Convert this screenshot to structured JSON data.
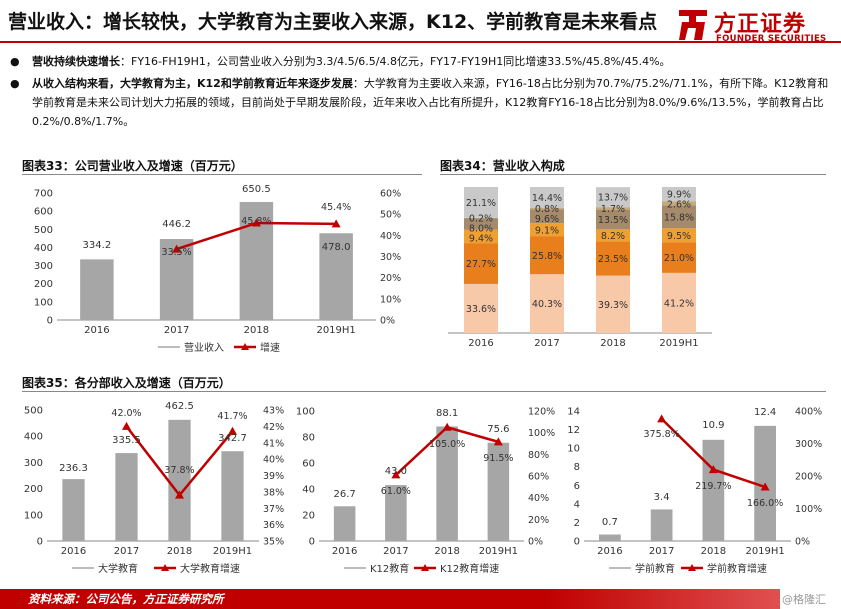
{
  "header": {
    "title": "营业收入：增长较快，大学教育为主要收入来源，K12、学前教育是未来看点",
    "logo_cn": "方正证券",
    "logo_en": "FOUNDER SECURITIES"
  },
  "bullets": [
    {
      "bold": "营收持续快速增长",
      "text": "：FY16-FH19H1，公司营业收入分别为3.3/4.5/6.5/4.8亿元，FY17-FY19H1同比增速33.5%/45.8%/45.4%。"
    },
    {
      "bold": "从收入结构来看，大学教育为主，K12和学前教育近年来逐步发展",
      "text": "：大学教育为主要收入来源，FY16-18占比分别为70.7%/75.2%/71.1%，有所下降。K12教育和学前教育是未来公司计划大力拓展的领域，目前尚处于早期发展阶段，近年来收入占比有所提升，K12教育FY16-18占比分别为8.0%/9.6%/13.5%，学前教育占比0.2%/0.8%/1.7%。"
    }
  ],
  "figures": {
    "fig33_title": "图表33：公司营业收入及增速（百万元）",
    "fig34_title": "图表34：营业收入构成",
    "fig35_title": "图表35：各分部收入及增速（百万元）"
  },
  "footer": {
    "source": "资料来源：公司公告，方正证券研究所",
    "watermark": "@格隆汇"
  },
  "colors": {
    "brand": "#c00000",
    "bar": "#a6a6a6",
    "line": "#c00000",
    "stack": [
      "#f8c9a9",
      "#e97e1c",
      "#f0a030",
      "#a58a6c",
      "#c6a979",
      "#c9c9c9"
    ]
  },
  "chart_data": [
    {
      "id": "fig33",
      "type": "bar",
      "categories": [
        "2016",
        "2017",
        "2018",
        "2019H1"
      ],
      "series": [
        {
          "name": "营业收入",
          "type": "bar",
          "values": [
            334.2,
            446.2,
            650.5,
            478.0
          ],
          "labels": [
            "334.2",
            "446.2",
            "650.5",
            "478.0"
          ]
        },
        {
          "name": "增速",
          "type": "line",
          "axis": "right",
          "values": [
            null,
            33.5,
            45.8,
            45.4
          ],
          "labels": [
            "",
            "33.5%",
            "45.8%",
            "45.4%"
          ]
        }
      ],
      "ylim": [
        0,
        700
      ],
      "yticks": [
        "0",
        "100",
        "200",
        "300",
        "400",
        "500",
        "600",
        "700"
      ],
      "y2lim": [
        0,
        60
      ],
      "y2ticks": [
        "0%",
        "10%",
        "20%",
        "30%",
        "40%",
        "50%",
        "60%"
      ],
      "legend": "bottom"
    },
    {
      "id": "fig34",
      "type": "bar",
      "stacked": true,
      "categories": [
        "2016",
        "2017",
        "2018",
        "2019H1"
      ],
      "series": [
        {
          "values": [
            33.6,
            40.3,
            39.3,
            41.2
          ],
          "labels": [
            "33.6%",
            "40.3%",
            "39.3%",
            "41.2%"
          ]
        },
        {
          "values": [
            27.7,
            25.8,
            23.5,
            21.0
          ],
          "labels": [
            "27.7%",
            "25.8%",
            "23.5%",
            "21.0%"
          ]
        },
        {
          "values": [
            9.4,
            9.1,
            8.2,
            9.5
          ],
          "labels": [
            "9.4%",
            "9.1%",
            "8.2%",
            "9.5%"
          ]
        },
        {
          "values": [
            8.0,
            9.6,
            13.5,
            15.8
          ],
          "labels": [
            "8.0%",
            "9.6%",
            "13.5%",
            "15.8%"
          ]
        },
        {
          "values": [
            0.2,
            0.8,
            1.7,
            2.6
          ],
          "labels": [
            "0.2%",
            "0.8%",
            "1.7%",
            "2.6%"
          ]
        },
        {
          "values": [
            21.1,
            14.4,
            13.7,
            9.9
          ],
          "labels": [
            "21.1%",
            "14.4%",
            "13.7%",
            "9.9%"
          ]
        }
      ],
      "ylim": [
        0,
        100
      ]
    },
    {
      "id": "fig35a",
      "type": "bar",
      "categories": [
        "2016",
        "2017",
        "2018",
        "2019H1"
      ],
      "series": [
        {
          "name": "大学教育",
          "type": "bar",
          "values": [
            236.3,
            335.5,
            462.5,
            342.7
          ],
          "labels": [
            "236.3",
            "335.5",
            "462.5",
            "342.7"
          ]
        },
        {
          "name": "大学教育增速",
          "type": "line",
          "axis": "right",
          "values": [
            null,
            42.0,
            37.8,
            41.7
          ],
          "labels": [
            "",
            "42.0%",
            "37.8%",
            "41.7%"
          ]
        }
      ],
      "ylim": [
        0,
        500
      ],
      "yticks": [
        "0",
        "100",
        "200",
        "300",
        "400",
        "500"
      ],
      "y2lim": [
        35,
        43
      ],
      "y2ticks": [
        "35%",
        "36%",
        "37%",
        "38%",
        "39%",
        "40%",
        "41%",
        "42%",
        "43%"
      ],
      "legend": "bottom"
    },
    {
      "id": "fig35b",
      "type": "bar",
      "categories": [
        "2016",
        "2017",
        "2018",
        "2019H1"
      ],
      "series": [
        {
          "name": "K12教育",
          "type": "bar",
          "values": [
            26.7,
            43.0,
            88.1,
            75.6
          ],
          "labels": [
            "26.7",
            "43.0",
            "88.1",
            "75.6"
          ]
        },
        {
          "name": "K12教育增速",
          "type": "line",
          "axis": "right",
          "values": [
            null,
            61.0,
            105.0,
            91.5
          ],
          "labels": [
            "",
            "61.0%",
            "105.0%",
            "91.5%"
          ]
        }
      ],
      "ylim": [
        0,
        100
      ],
      "yticks": [
        "0",
        "20",
        "40",
        "60",
        "80",
        "100"
      ],
      "y2lim": [
        0,
        120
      ],
      "y2ticks": [
        "0%",
        "20%",
        "40%",
        "60%",
        "80%",
        "100%",
        "120%"
      ],
      "legend": "bottom"
    },
    {
      "id": "fig35c",
      "type": "bar",
      "categories": [
        "2016",
        "2017",
        "2018",
        "2019H1"
      ],
      "series": [
        {
          "name": "学前教育",
          "type": "bar",
          "values": [
            0.7,
            3.4,
            10.9,
            12.4
          ],
          "labels": [
            "0.7",
            "3.4",
            "10.9",
            "12.4"
          ]
        },
        {
          "name": "学前教育增速",
          "type": "line",
          "axis": "right",
          "values": [
            null,
            375.8,
            219.7,
            166.0
          ],
          "labels": [
            "",
            "375.8%",
            "219.7%",
            "166.0%"
          ]
        }
      ],
      "ylim": [
        0,
        14
      ],
      "yticks": [
        "0",
        "2",
        "4",
        "6",
        "8",
        "10",
        "12",
        "14"
      ],
      "y2lim": [
        0,
        400
      ],
      "y2ticks": [
        "0%",
        "100%",
        "200%",
        "300%",
        "400%"
      ],
      "legend": "bottom"
    }
  ]
}
